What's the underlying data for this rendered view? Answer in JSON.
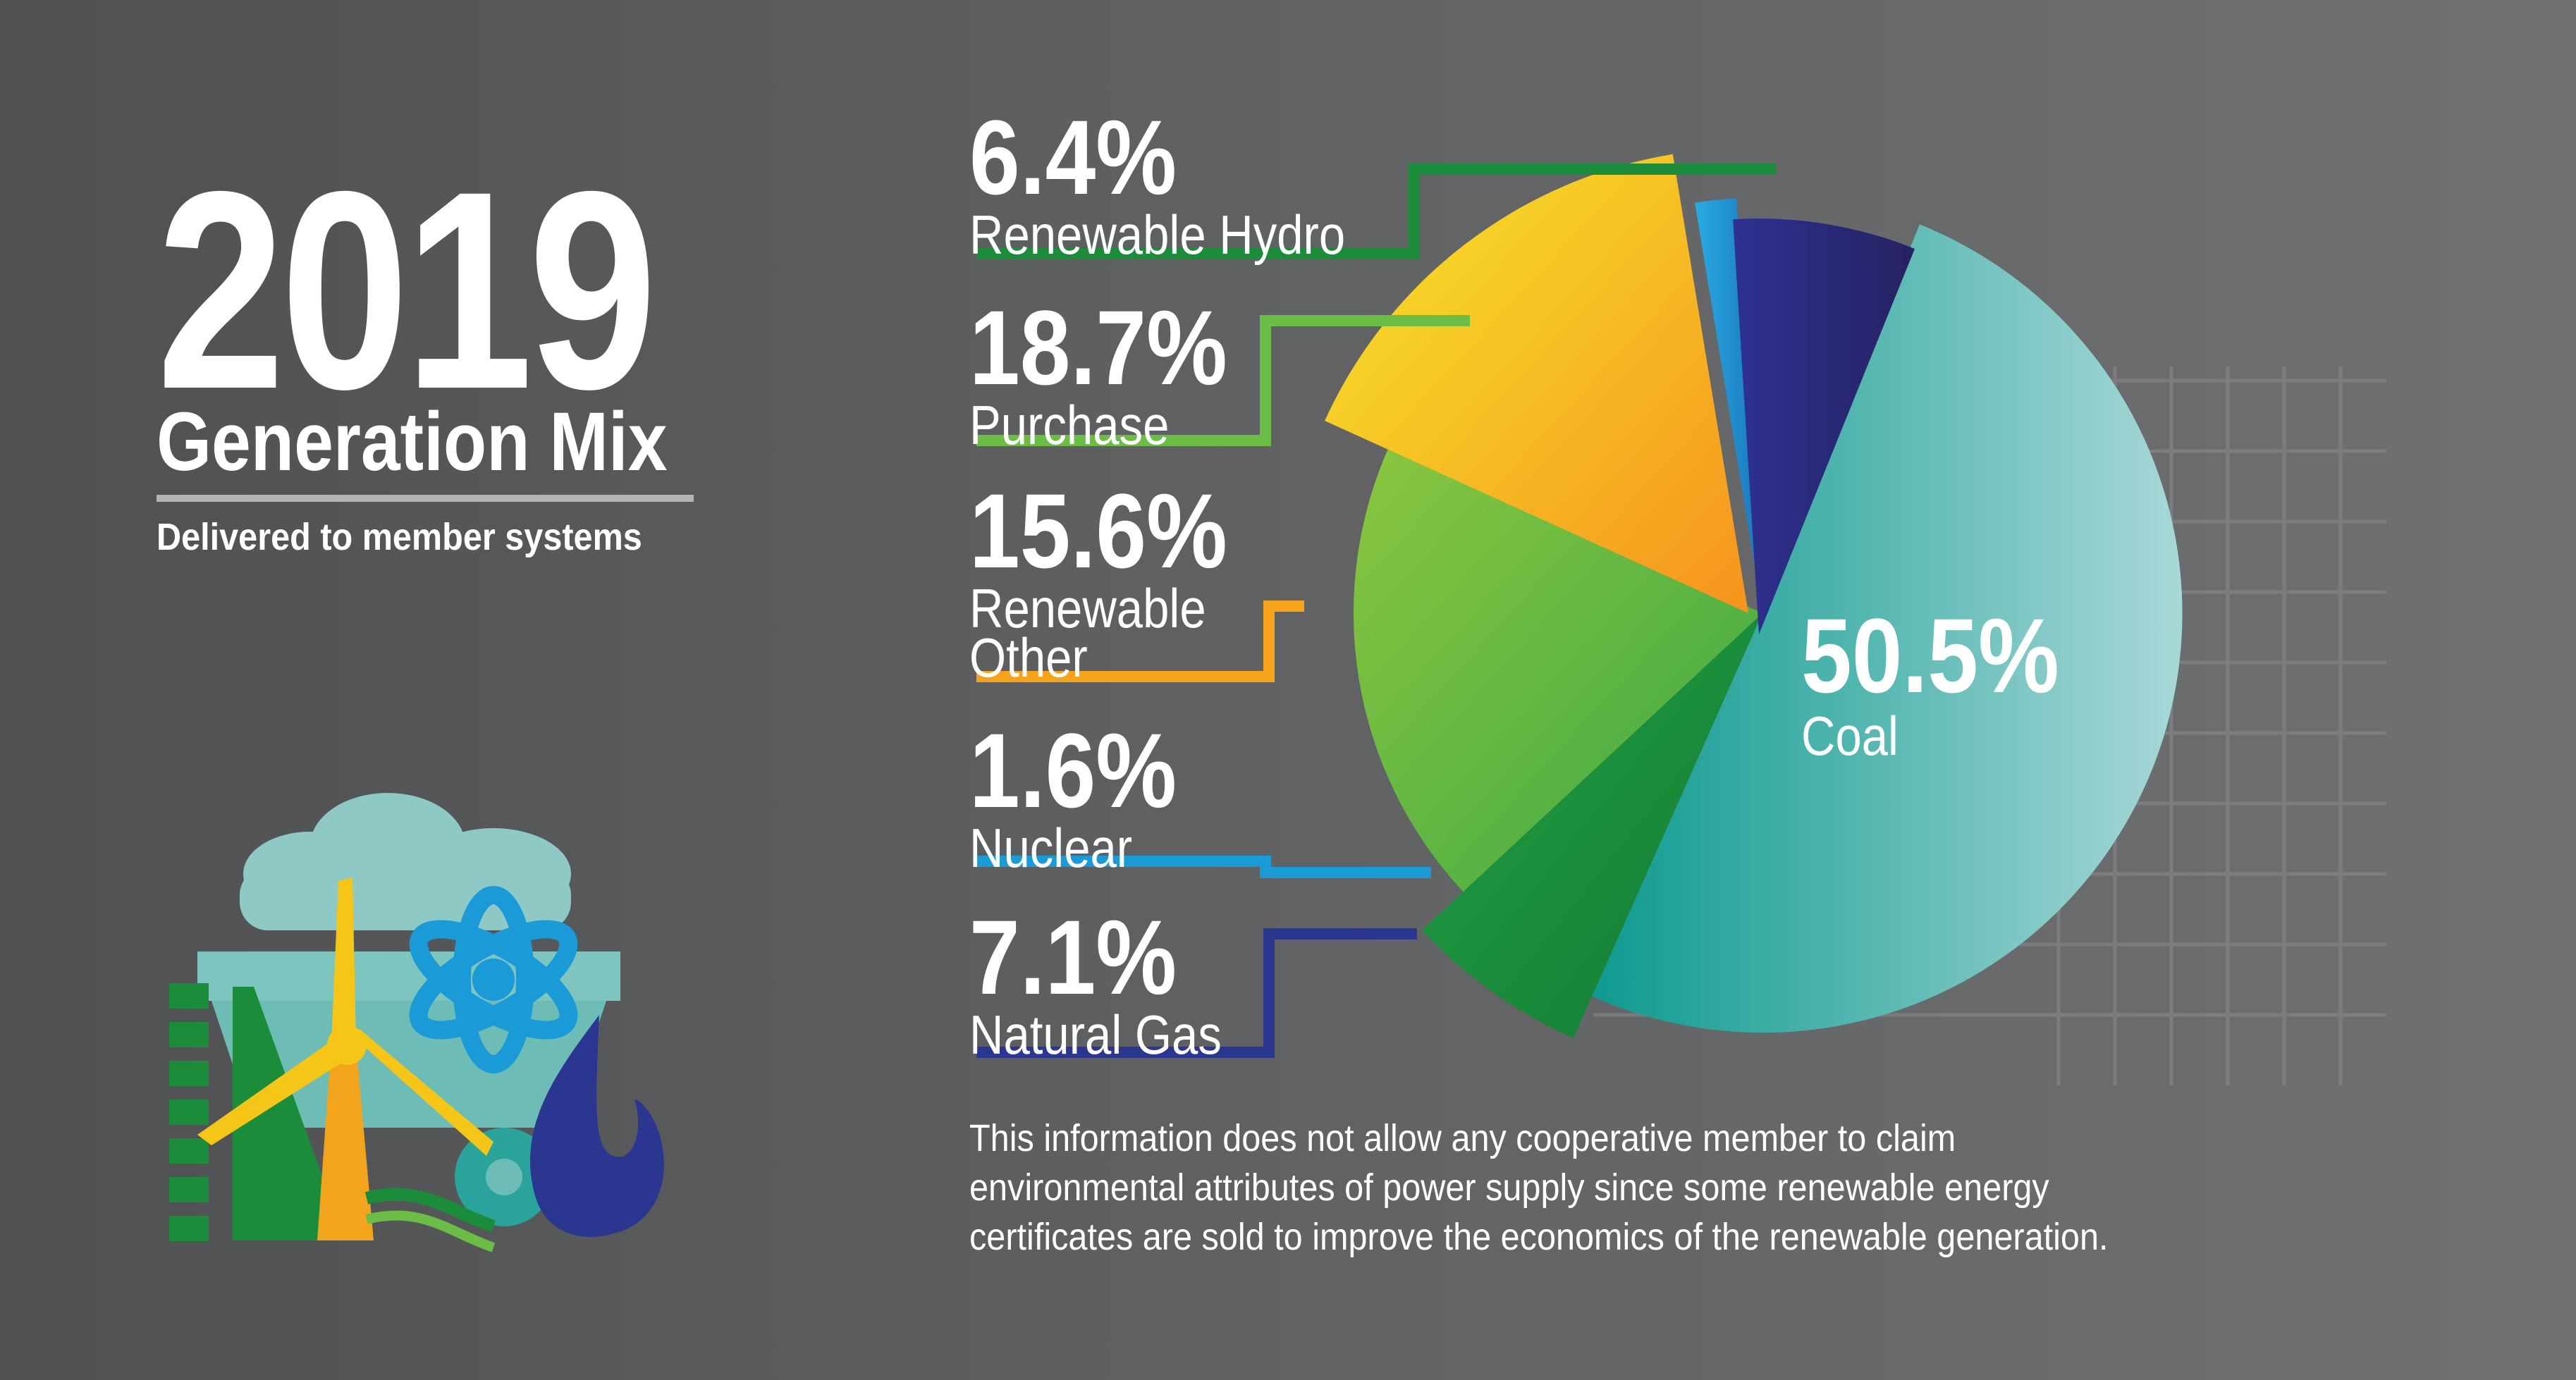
{
  "header": {
    "year": "2019",
    "headline": "Generation Mix",
    "subhead": "Delivered to member systems"
  },
  "footnote": "This information does not allow any cooperative member to claim environmental attributes of power supply since some renewable energy certificates are sold to improve the economics of the renewable generation.",
  "colors": {
    "renewable_hydro": "#1b8c3a",
    "purchase": "#6cbd45",
    "renewable_other": "#f6a21b",
    "nuclear": "#1a9ad6",
    "natural_gas": "#2b3690",
    "coal": "#35aaa3"
  },
  "icons": [
    "cloud-icon",
    "hydro-dam-icon",
    "wind-turbine-icon",
    "atom-icon",
    "flame-icon",
    "coal-cart-icon"
  ],
  "chart_data": {
    "type": "pie",
    "slices": [
      {
        "name": "Coal",
        "label": "Coal",
        "value": 50.5,
        "pct_label": "50.5%"
      },
      {
        "name": "Renewable Hydro",
        "label": "Renewable Hydro",
        "value": 6.4,
        "pct_label": "6.4%"
      },
      {
        "name": "Purchase",
        "label": "Purchase",
        "value": 18.7,
        "pct_label": "18.7%"
      },
      {
        "name": "Renewable Other",
        "label": "Renewable\nOther",
        "value": 15.6,
        "pct_label": "15.6%"
      },
      {
        "name": "Nuclear",
        "label": "Nuclear",
        "value": 1.6,
        "pct_label": "1.6%"
      },
      {
        "name": "Natural Gas",
        "label": "Natural Gas",
        "value": 7.1,
        "pct_label": "7.1%"
      }
    ],
    "legend": "left-callouts"
  }
}
